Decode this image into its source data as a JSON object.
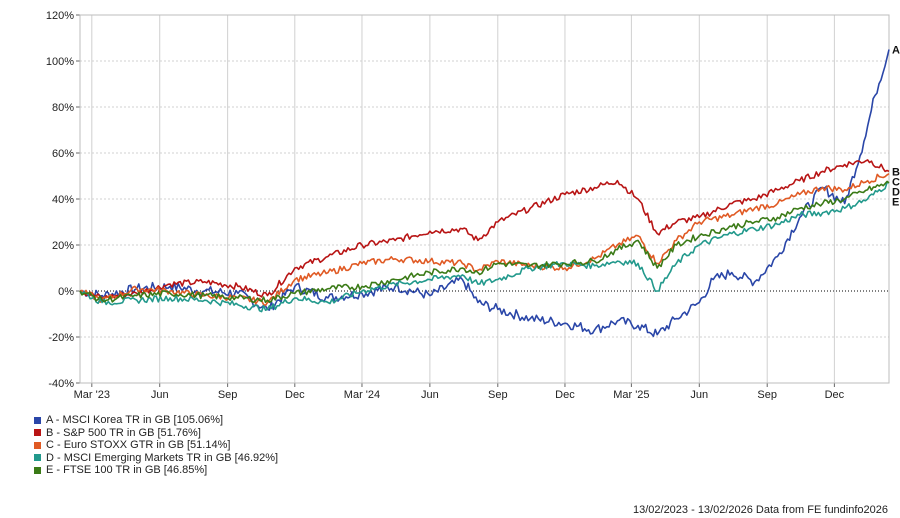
{
  "chart_data": {
    "type": "line",
    "y_ticks": [
      "120%",
      "100%",
      "80%",
      "60%",
      "40%",
      "20%",
      "0%",
      "-20%",
      "-40%"
    ],
    "y_tick_values": [
      120,
      100,
      80,
      60,
      40,
      20,
      0,
      -20,
      -40
    ],
    "ylim": [
      -40,
      120
    ],
    "x_ticks": [
      "Mar '23",
      "Jun",
      "Sep",
      "Dec",
      "Mar '24",
      "Jun",
      "Sep",
      "Dec",
      "Mar '25",
      "Jun",
      "Sep",
      "Dec"
    ],
    "x_tick_dates": [
      "2023-03-01",
      "2023-06-01",
      "2023-09-01",
      "2023-12-01",
      "2024-03-01",
      "2024-06-01",
      "2024-09-01",
      "2024-12-01",
      "2025-03-01",
      "2025-06-01",
      "2025-09-01",
      "2025-12-01"
    ],
    "xlim": [
      "2023-02-13",
      "2026-02-13"
    ],
    "grid": true,
    "legend_position": "bottom-left",
    "series": [
      {
        "name": "A - MSCI Korea TR in GB [105.06%]",
        "end_label": "A",
        "color": "#2a46a8",
        "dates": [
          "2023-02-13",
          "2023-03-15",
          "2023-05-01",
          "2023-06-15",
          "2023-08-01",
          "2023-09-15",
          "2023-10-25",
          "2023-12-01",
          "2024-01-15",
          "2024-03-01",
          "2024-04-15",
          "2024-06-01",
          "2024-07-15",
          "2024-08-05",
          "2024-09-01",
          "2024-10-15",
          "2024-12-01",
          "2025-01-10",
          "2025-02-10",
          "2025-03-10",
          "2025-04-05",
          "2025-05-01",
          "2025-06-01",
          "2025-06-20",
          "2025-07-15",
          "2025-08-15",
          "2025-09-15",
          "2025-10-15",
          "2025-11-15",
          "2025-12-15",
          "2026-01-10",
          "2026-01-25",
          "2026-02-13"
        ],
        "values": [
          0,
          -2,
          1,
          2,
          0,
          -1,
          -8,
          2,
          -3,
          -1,
          2,
          -2,
          5,
          -5,
          -8,
          -12,
          -14,
          -17,
          -13,
          -15,
          -19,
          -12,
          -5,
          5,
          8,
          4,
          15,
          32,
          45,
          38,
          65,
          85,
          105
        ]
      },
      {
        "name": "B - S&P 500 TR in GB [51.76%]",
        "end_label": "B",
        "color": "#b81414",
        "dates": [
          "2023-02-13",
          "2023-03-15",
          "2023-05-01",
          "2023-06-15",
          "2023-08-01",
          "2023-09-15",
          "2023-10-25",
          "2023-12-01",
          "2024-01-15",
          "2024-03-01",
          "2024-04-15",
          "2024-06-01",
          "2024-07-15",
          "2024-08-05",
          "2024-09-01",
          "2024-10-15",
          "2024-12-01",
          "2025-01-10",
          "2025-02-10",
          "2025-03-10",
          "2025-04-05",
          "2025-05-01",
          "2025-06-01",
          "2025-07-15",
          "2025-08-15",
          "2025-09-15",
          "2025-10-15",
          "2025-11-15",
          "2025-12-15",
          "2026-01-15",
          "2026-02-13"
        ],
        "values": [
          0,
          -3,
          -1,
          3,
          4,
          2,
          -2,
          10,
          15,
          20,
          22,
          26,
          27,
          22,
          30,
          36,
          42,
          45,
          48,
          40,
          25,
          30,
          32,
          38,
          40,
          44,
          48,
          52,
          55,
          57,
          52
        ]
      },
      {
        "name": "C - Euro STOXX GTR in GB [51.14%]",
        "end_label": "C",
        "color": "#e05a24",
        "dates": [
          "2023-02-13",
          "2023-03-15",
          "2023-05-01",
          "2023-06-15",
          "2023-08-01",
          "2023-09-15",
          "2023-10-25",
          "2023-12-01",
          "2024-01-15",
          "2024-03-01",
          "2024-04-15",
          "2024-06-01",
          "2024-07-15",
          "2024-08-05",
          "2024-09-01",
          "2024-10-15",
          "2024-12-01",
          "2025-01-10",
          "2025-02-10",
          "2025-03-10",
          "2025-04-05",
          "2025-05-01",
          "2025-06-01",
          "2025-07-15",
          "2025-08-15",
          "2025-09-15",
          "2025-10-15",
          "2025-11-15",
          "2025-12-15",
          "2026-01-15",
          "2026-02-13"
        ],
        "values": [
          0,
          -4,
          1,
          0,
          -2,
          -3,
          -5,
          5,
          8,
          12,
          14,
          13,
          12,
          9,
          13,
          11,
          10,
          14,
          20,
          24,
          12,
          22,
          30,
          33,
          36,
          38,
          42,
          45,
          44,
          48,
          51
        ]
      },
      {
        "name": "D - MSCI Emerging Markets TR in GB [46.92%]",
        "end_label": "D",
        "color": "#22998c",
        "dates": [
          "2023-02-13",
          "2023-03-15",
          "2023-05-01",
          "2023-06-15",
          "2023-08-01",
          "2023-09-15",
          "2023-10-25",
          "2023-12-01",
          "2024-01-15",
          "2024-03-01",
          "2024-04-15",
          "2024-06-01",
          "2024-07-15",
          "2024-08-05",
          "2024-09-01",
          "2024-10-15",
          "2024-12-01",
          "2025-01-10",
          "2025-02-10",
          "2025-03-10",
          "2025-04-05",
          "2025-05-01",
          "2025-06-01",
          "2025-07-15",
          "2025-08-15",
          "2025-09-15",
          "2025-10-15",
          "2025-11-15",
          "2025-12-15",
          "2026-01-15",
          "2026-02-13"
        ],
        "values": [
          0,
          -5,
          -4,
          -3,
          -4,
          -6,
          -8,
          -3,
          -5,
          0,
          3,
          5,
          7,
          3,
          5,
          10,
          12,
          11,
          13,
          12,
          0,
          12,
          20,
          25,
          27,
          29,
          33,
          34,
          36,
          40,
          47
        ]
      },
      {
        "name": "E - FTSE 100 TR in GB [46.85%]",
        "end_label": "E",
        "color": "#3a7a16",
        "dates": [
          "2023-02-13",
          "2023-03-15",
          "2023-05-01",
          "2023-06-15",
          "2023-08-01",
          "2023-09-15",
          "2023-10-25",
          "2023-12-01",
          "2024-01-15",
          "2024-03-01",
          "2024-04-15",
          "2024-06-01",
          "2024-07-15",
          "2024-08-05",
          "2024-09-01",
          "2024-10-15",
          "2024-12-01",
          "2025-01-10",
          "2025-02-10",
          "2025-03-10",
          "2025-04-05",
          "2025-05-01",
          "2025-06-01",
          "2025-07-15",
          "2025-08-15",
          "2025-09-15",
          "2025-10-15",
          "2025-11-15",
          "2025-12-15",
          "2026-01-15",
          "2026-02-13"
        ],
        "values": [
          0,
          -4,
          -2,
          -1,
          -2,
          -3,
          -4,
          -1,
          1,
          2,
          5,
          8,
          10,
          8,
          12,
          11,
          12,
          13,
          18,
          22,
          10,
          20,
          24,
          28,
          30,
          32,
          36,
          38,
          40,
          44,
          47
        ]
      }
    ]
  },
  "footer": "13/02/2023 - 13/02/2026 Data from FE fundinfo2026"
}
